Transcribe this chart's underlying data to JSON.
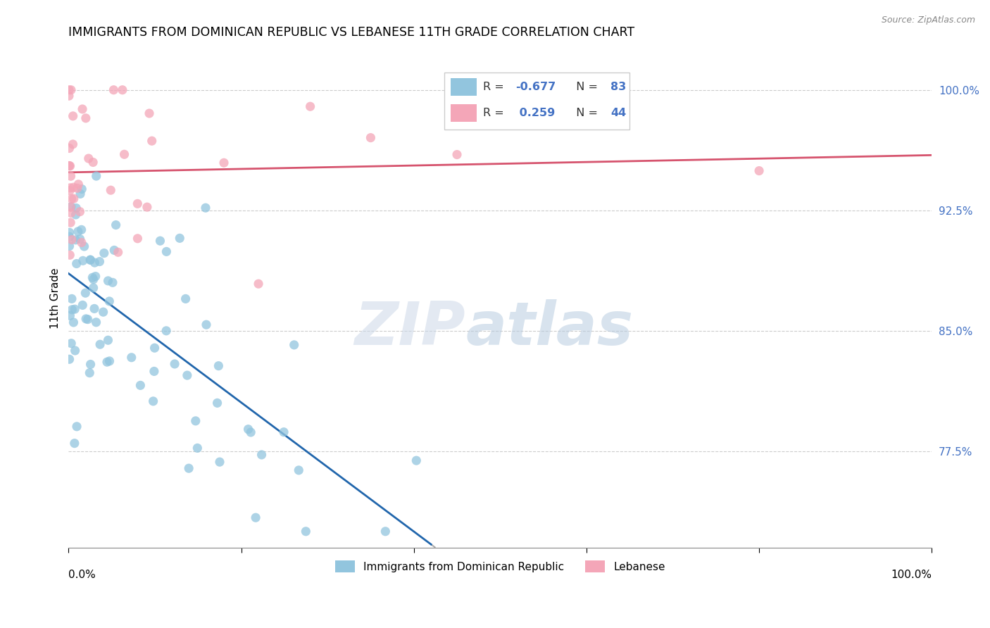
{
  "title": "IMMIGRANTS FROM DOMINICAN REPUBLIC VS LEBANESE 11TH GRADE CORRELATION CHART",
  "source": "Source: ZipAtlas.com",
  "ylabel": "11th Grade",
  "xlim": [
    0.0,
    1.0
  ],
  "ylim": [
    0.715,
    1.025
  ],
  "yticks": [
    0.775,
    0.85,
    0.925,
    1.0
  ],
  "ytick_labels": [
    "77.5%",
    "85.0%",
    "92.5%",
    "100.0%"
  ],
  "watermark_zip": "ZIP",
  "watermark_atlas": "atlas",
  "legend_blue_label": "Immigrants from Dominican Republic",
  "legend_pink_label": "Lebanese",
  "R_blue": -0.677,
  "N_blue": 83,
  "R_pink": 0.259,
  "N_pink": 44,
  "blue_color": "#92c5de",
  "pink_color": "#f4a6b8",
  "blue_line_color": "#2166ac",
  "pink_line_color": "#d6546e",
  "grid_color": "#cccccc",
  "ytick_color": "#4472c4",
  "legend_R_color": "#333333",
  "legend_N_color": "#4472c4"
}
